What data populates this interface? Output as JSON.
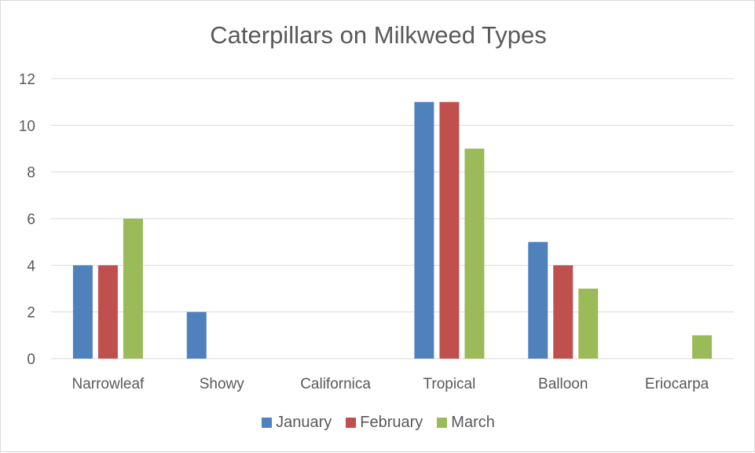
{
  "chart_data": {
    "type": "bar",
    "title": "Caterpillars on Milkweed Types",
    "categories": [
      "Narrowleaf",
      "Showy",
      "Californica",
      "Tropical",
      "Balloon",
      "Eriocarpa"
    ],
    "series": [
      {
        "name": "January",
        "color": "#4f81bd",
        "values": [
          4,
          2,
          0,
          11,
          5,
          0
        ]
      },
      {
        "name": "February",
        "color": "#c0504d",
        "values": [
          4,
          0,
          0,
          11,
          4,
          0
        ]
      },
      {
        "name": "March",
        "color": "#9bbb59",
        "values": [
          6,
          0,
          0,
          9,
          3,
          1
        ]
      }
    ],
    "yticks": [
      "0",
      "2",
      "4",
      "6",
      "8",
      "10",
      "12"
    ],
    "ylim": [
      0,
      12
    ],
    "grid": true,
    "legend_position": "bottom"
  }
}
